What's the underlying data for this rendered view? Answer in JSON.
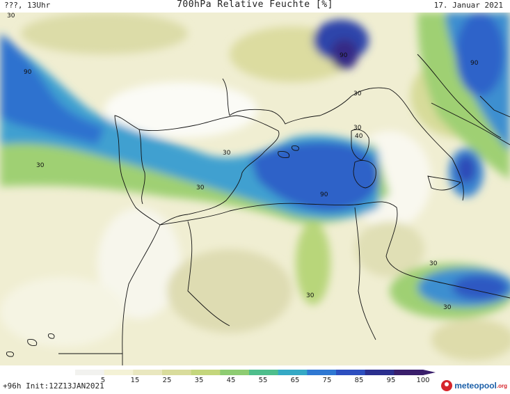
{
  "header": {
    "left": "???, 13Uhr",
    "title": "700hPa Relative Feuchte [%]",
    "date": "17. Januar 2021"
  },
  "footer": {
    "run": "+96h Init:12Z13JAN2021",
    "logo": "meteopool",
    "logo_tld": ".org"
  },
  "legend": {
    "ticks": [
      "5",
      "15",
      "25",
      "35",
      "45",
      "55",
      "65",
      "75",
      "85",
      "95",
      "100"
    ],
    "colors": [
      "#f2f2ef",
      "#f4f2d6",
      "#e9e7bf",
      "#d9dc9c",
      "#c4d67c",
      "#8ecc72",
      "#4fbe8c",
      "#35a9c5",
      "#2f78d2",
      "#2d4fbf",
      "#2b2f8e",
      "#3a1e6b"
    ]
  },
  "isolines": [
    {
      "label": "90"
    },
    {
      "label": "30"
    },
    {
      "label": "90"
    },
    {
      "label": "30"
    },
    {
      "label": "30"
    },
    {
      "label": "30"
    },
    {
      "label": "40"
    },
    {
      "label": "30"
    },
    {
      "label": "90"
    },
    {
      "label": "30"
    },
    {
      "label": "30"
    },
    {
      "label": "30"
    },
    {
      "label": "90"
    }
  ]
}
